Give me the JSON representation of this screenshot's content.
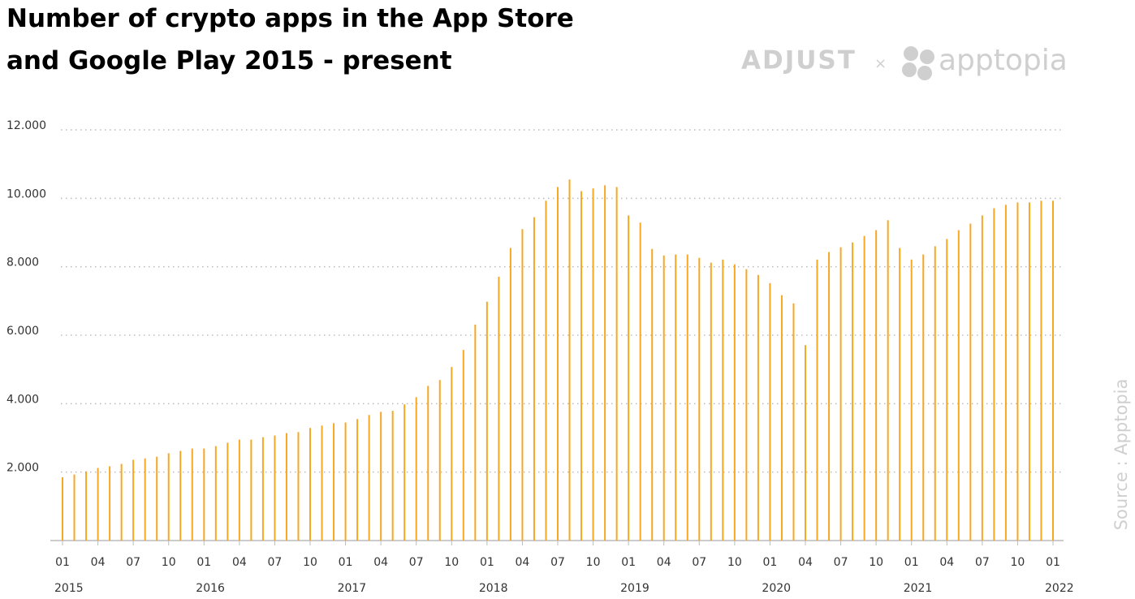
{
  "chart_data": {
    "type": "bar",
    "title": [
      "Number of crypto apps in the App Store",
      "and Google Play 2015 - present"
    ],
    "logos": {
      "brand": "ADJUST",
      "separator": "×",
      "partner": "apptopia"
    },
    "source": "Source : Apptopia",
    "color": "#f7a823",
    "grid": true,
    "categories": [
      "01",
      null,
      null,
      "04",
      null,
      null,
      "07",
      null,
      null,
      "10",
      null,
      null,
      "01",
      null,
      null,
      "04",
      null,
      null,
      "07",
      null,
      null,
      "10",
      null,
      null,
      "01",
      null,
      null,
      "04",
      null,
      null,
      "07",
      null,
      null,
      "10",
      null,
      null,
      "01",
      null,
      null,
      "04",
      null,
      null,
      "07",
      null,
      null,
      "10",
      null,
      null,
      "01",
      null,
      null,
      "04",
      null,
      null,
      "07",
      null,
      null,
      "10",
      null,
      null,
      "01",
      null,
      null,
      "04",
      null,
      null,
      "07",
      null,
      null,
      "10",
      null,
      null,
      "01",
      null,
      null,
      "04",
      null,
      null,
      "07",
      null,
      null,
      "10",
      null,
      null,
      "01"
    ],
    "category_groups": [
      "2015",
      "2016",
      "2017",
      "2018",
      "2019",
      "2020",
      "2021",
      "2022"
    ],
    "values": [
      1850,
      1930,
      2020,
      2120,
      2170,
      2240,
      2360,
      2400,
      2450,
      2550,
      2620,
      2690,
      2690,
      2760,
      2860,
      2950,
      2950,
      3020,
      3070,
      3140,
      3170,
      3290,
      3360,
      3430,
      3450,
      3550,
      3670,
      3760,
      3790,
      3980,
      4190,
      4520,
      4690,
      5070,
      5570,
      6310,
      6980,
      7710,
      8550,
      9100,
      9450,
      9930,
      10330,
      10550,
      10210,
      10290,
      10380,
      10330,
      9500,
      9290,
      8520,
      8330,
      8360,
      8360,
      8260,
      8120,
      8210,
      8070,
      7930,
      7760,
      7520,
      7170,
      6930,
      5710,
      8210,
      8430,
      8570,
      8710,
      8900,
      9070,
      9360,
      8550,
      8210,
      8360,
      8600,
      8810,
      9070,
      9260,
      9500,
      9710,
      9810,
      9880,
      9880,
      9930,
      9930
    ],
    "ylim": [
      0,
      12000
    ],
    "yticks": [
      {
        "value": 2000,
        "label": "2.000"
      },
      {
        "value": 4000,
        "label": "4.000"
      },
      {
        "value": 6000,
        "label": "6.000"
      },
      {
        "value": 8000,
        "label": "8.000"
      },
      {
        "value": 10000,
        "label": "10.000"
      },
      {
        "value": 12000,
        "label": "12.000"
      }
    ]
  }
}
